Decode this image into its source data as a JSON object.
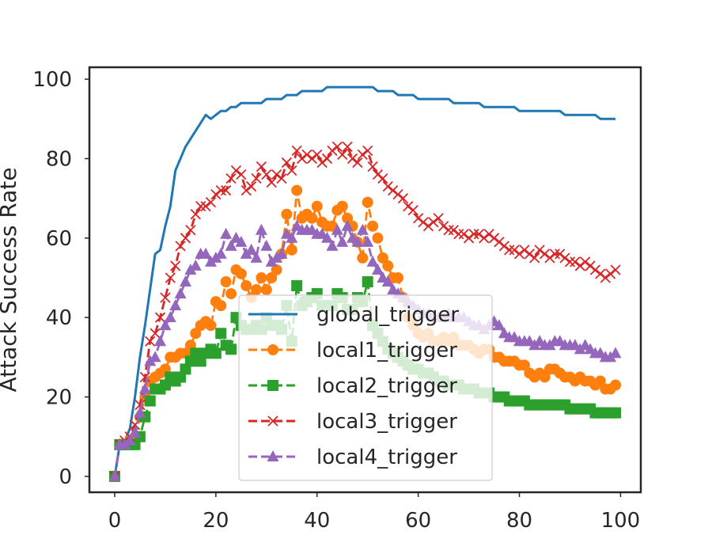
{
  "chart_data": {
    "type": "line",
    "xlabel": "",
    "ylabel": "Attack Success Rate",
    "xlim": [
      -5,
      104
    ],
    "ylim": [
      -4,
      103
    ],
    "xticks": [
      0,
      20,
      40,
      60,
      80,
      100
    ],
    "yticks": [
      0,
      20,
      40,
      60,
      80,
      100
    ],
    "grid": false,
    "legend_position": "lower-center",
    "series": [
      {
        "name": "global_trigger",
        "color": "#1f77b4",
        "marker": "none",
        "dash": "solid",
        "x": [
          0,
          1,
          2,
          3,
          4,
          5,
          6,
          7,
          8,
          9,
          10,
          11,
          12,
          13,
          14,
          15,
          16,
          17,
          18,
          19,
          20,
          21,
          22,
          23,
          24,
          25,
          26,
          27,
          28,
          29,
          30,
          31,
          32,
          33,
          34,
          35,
          36,
          37,
          38,
          39,
          40,
          41,
          42,
          43,
          44,
          45,
          46,
          47,
          48,
          49,
          50,
          51,
          52,
          53,
          54,
          55,
          56,
          57,
          58,
          59,
          60,
          61,
          62,
          63,
          64,
          65,
          66,
          67,
          68,
          69,
          70,
          71,
          72,
          73,
          74,
          75,
          76,
          77,
          78,
          79,
          80,
          81,
          82,
          83,
          84,
          85,
          86,
          87,
          88,
          89,
          90,
          91,
          92,
          93,
          94,
          95,
          96,
          97,
          98,
          99
        ],
        "y": [
          0,
          8,
          9,
          12,
          20,
          30,
          38,
          47,
          56,
          57,
          63,
          68,
          77,
          80,
          83,
          85,
          87,
          89,
          91,
          90,
          91,
          92,
          92,
          93,
          93,
          94,
          94,
          94,
          94,
          94,
          95,
          95,
          95,
          95,
          96,
          96,
          96,
          97,
          97,
          97,
          97,
          97,
          98,
          98,
          98,
          98,
          98,
          98,
          98,
          98,
          98,
          98,
          97,
          97,
          97,
          97,
          96,
          96,
          96,
          96,
          95,
          95,
          95,
          95,
          95,
          95,
          95,
          94,
          94,
          94,
          94,
          94,
          94,
          93,
          93,
          93,
          93,
          93,
          93,
          93,
          92,
          92,
          92,
          92,
          92,
          92,
          92,
          92,
          92,
          91,
          91,
          91,
          91,
          91,
          91,
          91,
          90,
          90,
          90,
          90
        ]
      },
      {
        "name": "local1_trigger",
        "color": "#ff7f0e",
        "marker": "circle",
        "dash": "dashed",
        "x": [
          0,
          1,
          2,
          3,
          4,
          5,
          6,
          7,
          8,
          9,
          10,
          11,
          12,
          13,
          14,
          15,
          16,
          17,
          18,
          19,
          20,
          21,
          22,
          23,
          24,
          25,
          26,
          27,
          28,
          29,
          30,
          31,
          32,
          33,
          34,
          35,
          36,
          37,
          38,
          39,
          40,
          41,
          42,
          43,
          44,
          45,
          46,
          47,
          48,
          49,
          50,
          51,
          52,
          53,
          54,
          55,
          56,
          57,
          58,
          59,
          60,
          61,
          62,
          63,
          64,
          65,
          66,
          67,
          68,
          69,
          70,
          71,
          72,
          73,
          74,
          75,
          76,
          77,
          78,
          79,
          80,
          81,
          82,
          83,
          84,
          85,
          86,
          87,
          88,
          89,
          90,
          91,
          92,
          93,
          94,
          95,
          96,
          97,
          98,
          99
        ],
        "y": [
          0,
          8,
          8,
          9,
          10,
          15,
          20,
          24,
          25,
          26,
          27,
          30,
          30,
          31,
          31,
          33,
          36,
          38,
          39,
          38,
          44,
          43,
          49,
          46,
          52,
          51,
          48,
          45,
          47,
          50,
          47,
          50,
          52,
          56,
          66,
          57,
          72,
          65,
          66,
          65,
          68,
          64,
          63,
          63,
          67,
          68,
          65,
          63,
          59,
          55,
          69,
          63,
          60,
          55,
          53,
          50,
          50,
          45,
          40,
          38,
          36,
          35,
          36,
          34,
          34,
          35,
          34,
          35,
          33,
          33,
          33,
          32,
          31,
          32,
          32,
          30,
          30,
          29,
          29,
          29,
          28,
          28,
          26,
          25,
          26,
          25,
          27,
          27,
          26,
          25,
          25,
          24,
          25,
          24,
          24,
          23,
          24,
          22,
          22,
          23
        ]
      },
      {
        "name": "local2_trigger",
        "color": "#2ca02c",
        "marker": "square",
        "dash": "dashed",
        "x": [
          0,
          1,
          2,
          3,
          4,
          5,
          6,
          7,
          8,
          9,
          10,
          11,
          12,
          13,
          14,
          15,
          16,
          17,
          18,
          19,
          20,
          21,
          22,
          23,
          24,
          25,
          26,
          27,
          28,
          29,
          30,
          31,
          32,
          33,
          34,
          35,
          36,
          37,
          38,
          39,
          40,
          41,
          42,
          43,
          44,
          45,
          46,
          47,
          48,
          49,
          50,
          51,
          52,
          53,
          54,
          55,
          56,
          57,
          58,
          59,
          60,
          61,
          62,
          63,
          64,
          65,
          66,
          67,
          68,
          69,
          70,
          71,
          72,
          73,
          74,
          75,
          76,
          77,
          78,
          79,
          80,
          81,
          82,
          83,
          84,
          85,
          86,
          87,
          88,
          89,
          90,
          91,
          92,
          93,
          94,
          95,
          96,
          97,
          98,
          99
        ],
        "y": [
          0,
          8,
          8,
          8,
          8,
          10,
          15,
          19,
          22,
          22,
          23,
          25,
          24,
          25,
          27,
          29,
          31,
          29,
          31,
          32,
          31,
          36,
          33,
          32,
          40,
          38,
          37,
          37,
          38,
          37,
          40,
          38,
          38,
          37,
          43,
          34,
          48,
          43,
          44,
          45,
          46,
          43,
          43,
          43,
          46,
          45,
          42,
          42,
          45,
          44,
          49,
          38,
          36,
          34,
          32,
          31,
          30,
          29,
          28,
          27,
          27,
          26,
          26,
          25,
          24,
          24,
          23,
          23,
          23,
          22,
          22,
          22,
          21,
          21,
          21,
          20,
          20,
          20,
          19,
          19,
          19,
          19,
          18,
          18,
          18,
          18,
          18,
          18,
          18,
          18,
          17,
          17,
          17,
          17,
          17,
          16,
          16,
          16,
          16,
          16
        ]
      },
      {
        "name": "local3_trigger",
        "color": "#d62728",
        "marker": "x",
        "dash": "dashed",
        "x": [
          0,
          1,
          2,
          3,
          4,
          5,
          6,
          7,
          8,
          9,
          10,
          11,
          12,
          13,
          14,
          15,
          16,
          17,
          18,
          19,
          20,
          21,
          22,
          23,
          24,
          25,
          26,
          27,
          28,
          29,
          30,
          31,
          32,
          33,
          34,
          35,
          36,
          37,
          38,
          39,
          40,
          41,
          42,
          43,
          44,
          45,
          46,
          47,
          48,
          49,
          50,
          51,
          52,
          53,
          54,
          55,
          56,
          57,
          58,
          59,
          60,
          61,
          62,
          63,
          64,
          65,
          66,
          67,
          68,
          69,
          70,
          71,
          72,
          73,
          74,
          75,
          76,
          77,
          78,
          79,
          80,
          81,
          82,
          83,
          84,
          85,
          86,
          87,
          88,
          89,
          90,
          91,
          92,
          93,
          94,
          95,
          96,
          97,
          98,
          99
        ],
        "y": [
          0,
          8,
          9,
          10,
          13,
          18,
          25,
          34,
          36,
          40,
          45,
          50,
          53,
          58,
          60,
          62,
          66,
          68,
          68,
          69,
          71,
          72,
          72,
          75,
          77,
          76,
          72,
          73,
          75,
          78,
          76,
          74,
          76,
          75,
          79,
          77,
          82,
          80,
          81,
          80,
          81,
          79,
          80,
          82,
          83,
          81,
          83,
          80,
          79,
          81,
          82,
          78,
          76,
          75,
          73,
          72,
          71,
          70,
          68,
          67,
          65,
          64,
          63,
          64,
          65,
          63,
          62,
          62,
          61,
          61,
          60,
          61,
          61,
          60,
          61,
          60,
          59,
          58,
          57,
          57,
          56,
          57,
          56,
          55,
          57,
          56,
          55,
          56,
          56,
          55,
          54,
          54,
          53,
          54,
          53,
          52,
          51,
          50,
          51,
          52
        ]
      },
      {
        "name": "local4_trigger",
        "color": "#9467bd",
        "marker": "triangle",
        "dash": "dashed",
        "x": [
          0,
          1,
          2,
          3,
          4,
          5,
          6,
          7,
          8,
          9,
          10,
          11,
          12,
          13,
          14,
          15,
          16,
          17,
          18,
          19,
          20,
          21,
          22,
          23,
          24,
          25,
          26,
          27,
          28,
          29,
          30,
          31,
          32,
          33,
          34,
          35,
          36,
          37,
          38,
          39,
          40,
          41,
          42,
          43,
          44,
          45,
          46,
          47,
          48,
          49,
          50,
          51,
          52,
          53,
          54,
          55,
          56,
          57,
          58,
          59,
          60,
          61,
          62,
          63,
          64,
          65,
          66,
          67,
          68,
          69,
          70,
          71,
          72,
          73,
          74,
          75,
          76,
          77,
          78,
          79,
          80,
          81,
          82,
          83,
          84,
          85,
          86,
          87,
          88,
          89,
          90,
          91,
          92,
          93,
          94,
          95,
          96,
          97,
          98,
          99
        ],
        "y": [
          0,
          8,
          8,
          9,
          11,
          16,
          22,
          29,
          30,
          34,
          38,
          40,
          43,
          46,
          49,
          52,
          53,
          56,
          56,
          54,
          55,
          56,
          61,
          58,
          60,
          59,
          56,
          57,
          55,
          62,
          58,
          54,
          55,
          56,
          61,
          60,
          63,
          62,
          62,
          62,
          61,
          61,
          60,
          58,
          62,
          59,
          63,
          60,
          59,
          62,
          59,
          54,
          52,
          50,
          49,
          47,
          46,
          45,
          44,
          43,
          42,
          41,
          41,
          40,
          40,
          40,
          41,
          40,
          40,
          40,
          39,
          38,
          38,
          37,
          38,
          39,
          38,
          36,
          35,
          35,
          34,
          34,
          34,
          33,
          34,
          33,
          33,
          34,
          34,
          33,
          33,
          33,
          32,
          33,
          32,
          31,
          31,
          30,
          30,
          31
        ]
      }
    ]
  }
}
